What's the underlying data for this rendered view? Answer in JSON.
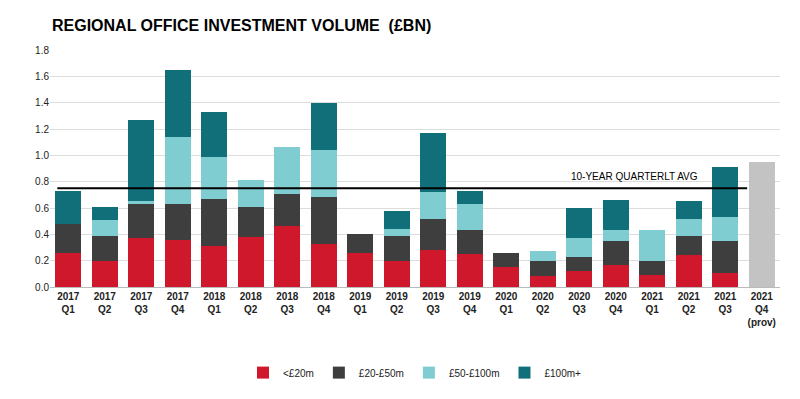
{
  "chart_data": {
    "type": "bar",
    "title": "REGIONAL OFFICE INVESTMENT VOLUME  (£BN)",
    "stacked": true,
    "grid": true,
    "legend": "bottom",
    "categories": [
      "2017\nQ1",
      "2017\nQ2",
      "2017\nQ3",
      "2017\nQ4",
      "2018\nQ1",
      "2018\nQ2",
      "2018\nQ3",
      "2018\nQ4",
      "2019\nQ1",
      "2019\nQ2",
      "2019\nQ3",
      "2019\nQ4",
      "2020\nQ1",
      "2020\nQ2",
      "2020\nQ3",
      "2020\nQ4",
      "2021\nQ1",
      "2021\nQ2",
      "2021\nQ3",
      "2021\nQ4\n(prov)"
    ],
    "series": [
      {
        "name": "<£20m",
        "color": "#d0182d",
        "values": [
          0.26,
          0.2,
          0.37,
          0.36,
          0.31,
          0.38,
          0.46,
          0.33,
          0.26,
          0.2,
          0.28,
          0.25,
          0.15,
          0.08,
          0.12,
          0.17,
          0.09,
          0.24,
          0.11,
          null
        ]
      },
      {
        "name": "£20-£50m",
        "color": "#3e3e3e",
        "values": [
          0.22,
          0.19,
          0.26,
          0.27,
          0.36,
          0.23,
          0.25,
          0.35,
          0.14,
          0.19,
          0.24,
          0.18,
          0.11,
          0.12,
          0.11,
          0.18,
          0.11,
          0.15,
          0.24,
          null
        ]
      },
      {
        "name": "£50-£100m",
        "color": "#7fcdd0",
        "values": [
          0,
          0.12,
          0.02,
          0.51,
          0.32,
          0.2,
          0.35,
          0.36,
          0,
          0.05,
          0.2,
          0.2,
          0,
          0.07,
          0.14,
          0.08,
          0.23,
          0.13,
          0.18,
          null
        ]
      },
      {
        "name": "£100m+",
        "color": "#106f78",
        "values": [
          0.25,
          0.1,
          0.62,
          0.51,
          0.34,
          0,
          0,
          0.36,
          0,
          0.14,
          0.45,
          0.1,
          0,
          0,
          0.23,
          0.23,
          0,
          0.13,
          0.38,
          null
        ]
      },
      {
        "name": null,
        "color": "#c3c3c3",
        "values": [
          null,
          null,
          null,
          null,
          null,
          null,
          null,
          null,
          null,
          null,
          null,
          null,
          null,
          null,
          null,
          null,
          null,
          null,
          null,
          0.95
        ]
      }
    ],
    "reference_line": {
      "value": 0.75,
      "label": "10-YEAR QUARTERLT AVG",
      "color": "#000000"
    },
    "ylim": [
      0,
      1.8
    ],
    "yticks": [
      {
        "value": 0,
        "label": "0.0"
      },
      0.2,
      0.4,
      0.6,
      0.8,
      {
        "value": 1,
        "label": "1.0"
      },
      1.2,
      1.4,
      1.6,
      1.8
    ]
  }
}
